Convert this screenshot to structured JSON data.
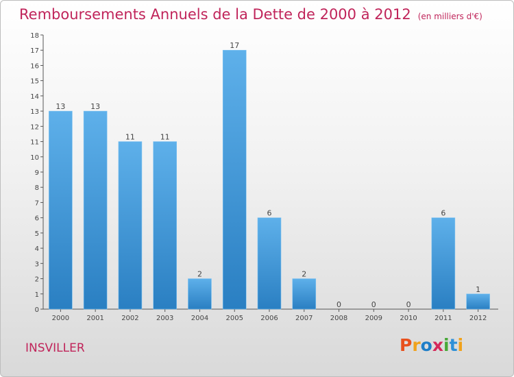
{
  "chart_data": {
    "type": "bar",
    "title": "Remboursements Annuels de la Dette de 2000 à 2012",
    "unit_note": "(en milliers d'€)",
    "xlabel": "",
    "ylabel": "",
    "categories": [
      "2000",
      "2001",
      "2002",
      "2003",
      "2004",
      "2005",
      "2006",
      "2007",
      "2008",
      "2009",
      "2010",
      "2011",
      "2012"
    ],
    "values": [
      13,
      13,
      11,
      11,
      2,
      17,
      6,
      2,
      0,
      0,
      0,
      6,
      1
    ],
    "ylim": [
      0,
      18
    ],
    "yticks": [
      "0",
      "1",
      "2",
      "3",
      "4",
      "5",
      "6",
      "7",
      "8",
      "9",
      "10",
      "11",
      "12",
      "13",
      "14",
      "15",
      "16",
      "17",
      "18"
    ],
    "grid": false,
    "bar_color": "#3a8fd0"
  },
  "footer": {
    "commune": "INSVILLER",
    "logo_letters": [
      "P",
      "r",
      "o",
      "x",
      "i",
      "t",
      "i"
    ],
    "logo_colors": [
      "#e8501c",
      "#f0a21c",
      "#1e7ec8",
      "#d4285a",
      "#48a838",
      "#2e90d8",
      "#f0a21c"
    ]
  }
}
